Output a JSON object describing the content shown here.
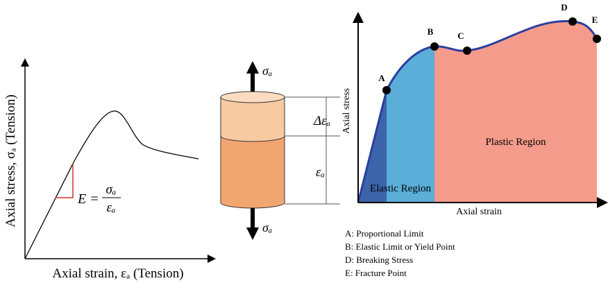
{
  "left_graph": {
    "y_label": "Axial stress, σₐ (Tension)",
    "x_label": "Axial strain, εₐ (Tension)",
    "formula": {
      "lhs": "E =",
      "numerator": "σₐ",
      "denominator": "εₐ"
    }
  },
  "specimen": {
    "top_force": "σₐ",
    "bottom_force": "σₐ",
    "delta_strain": "Δεₐ",
    "strain": "εₐ"
  },
  "right_graph": {
    "y_label": "Axial stress",
    "x_label": "Axial strain",
    "points": [
      "A",
      "B",
      "C",
      "D",
      "E"
    ],
    "regions": [
      "Elastic Region",
      "Plastic Region"
    ],
    "legend": [
      "A: Proportional Limit",
      "B: Elastic Limit or Yield Point",
      "D: Breaking Stress",
      "E: Fracture Point"
    ]
  }
}
